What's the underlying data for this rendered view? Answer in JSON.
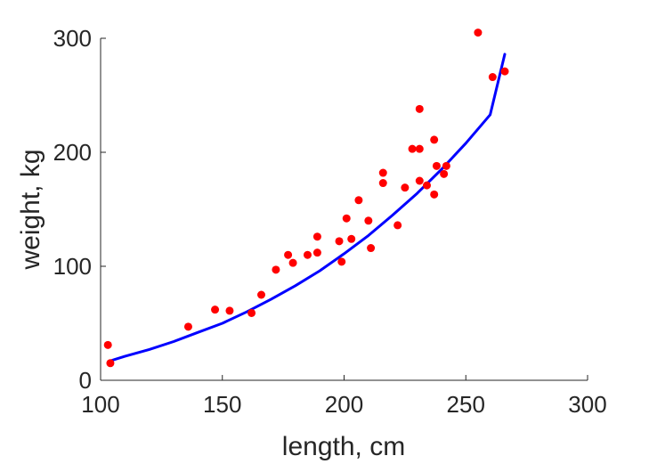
{
  "chart_data": {
    "type": "scatter",
    "title": "",
    "xlabel": "length, cm",
    "ylabel": "weight, kg",
    "xlim": [
      100,
      300
    ],
    "ylim": [
      0,
      300
    ],
    "xticks": [
      100,
      150,
      200,
      250,
      300
    ],
    "yticks": [
      0,
      100,
      200,
      300
    ],
    "grid": false,
    "axes_box": "left-bottom",
    "series": [
      {
        "kind": "scatter",
        "color": "#ff0000",
        "points": [
          [
            103,
            31
          ],
          [
            104,
            15
          ],
          [
            136,
            47
          ],
          [
            147,
            62
          ],
          [
            153,
            61
          ],
          [
            162,
            59
          ],
          [
            166,
            75
          ],
          [
            172,
            97
          ],
          [
            177,
            110
          ],
          [
            179,
            103
          ],
          [
            185,
            110
          ],
          [
            189,
            126
          ],
          [
            189,
            112
          ],
          [
            198,
            122
          ],
          [
            199,
            104
          ],
          [
            201,
            142
          ],
          [
            203,
            124
          ],
          [
            206,
            158
          ],
          [
            210,
            140
          ],
          [
            211,
            116
          ],
          [
            216,
            173
          ],
          [
            216,
            182
          ],
          [
            222,
            136
          ],
          [
            225,
            169
          ],
          [
            228,
            203
          ],
          [
            231,
            203
          ],
          [
            231,
            175
          ],
          [
            231,
            238
          ],
          [
            234,
            171
          ],
          [
            237,
            211
          ],
          [
            237,
            163
          ],
          [
            238,
            188
          ],
          [
            241,
            181
          ],
          [
            242,
            188
          ],
          [
            255,
            305
          ],
          [
            261,
            266
          ],
          [
            266,
            271
          ]
        ]
      },
      {
        "kind": "line",
        "color": "#0000ff",
        "x": [
          104,
          110,
          120,
          130,
          140,
          150,
          160,
          170,
          180,
          190,
          200,
          210,
          220,
          230,
          240,
          250,
          260,
          266
        ],
        "values": [
          17,
          21,
          27,
          34,
          42,
          50,
          60,
          71,
          83,
          96,
          111,
          127,
          145,
          164,
          185,
          208,
          233,
          286
        ]
      }
    ]
  }
}
